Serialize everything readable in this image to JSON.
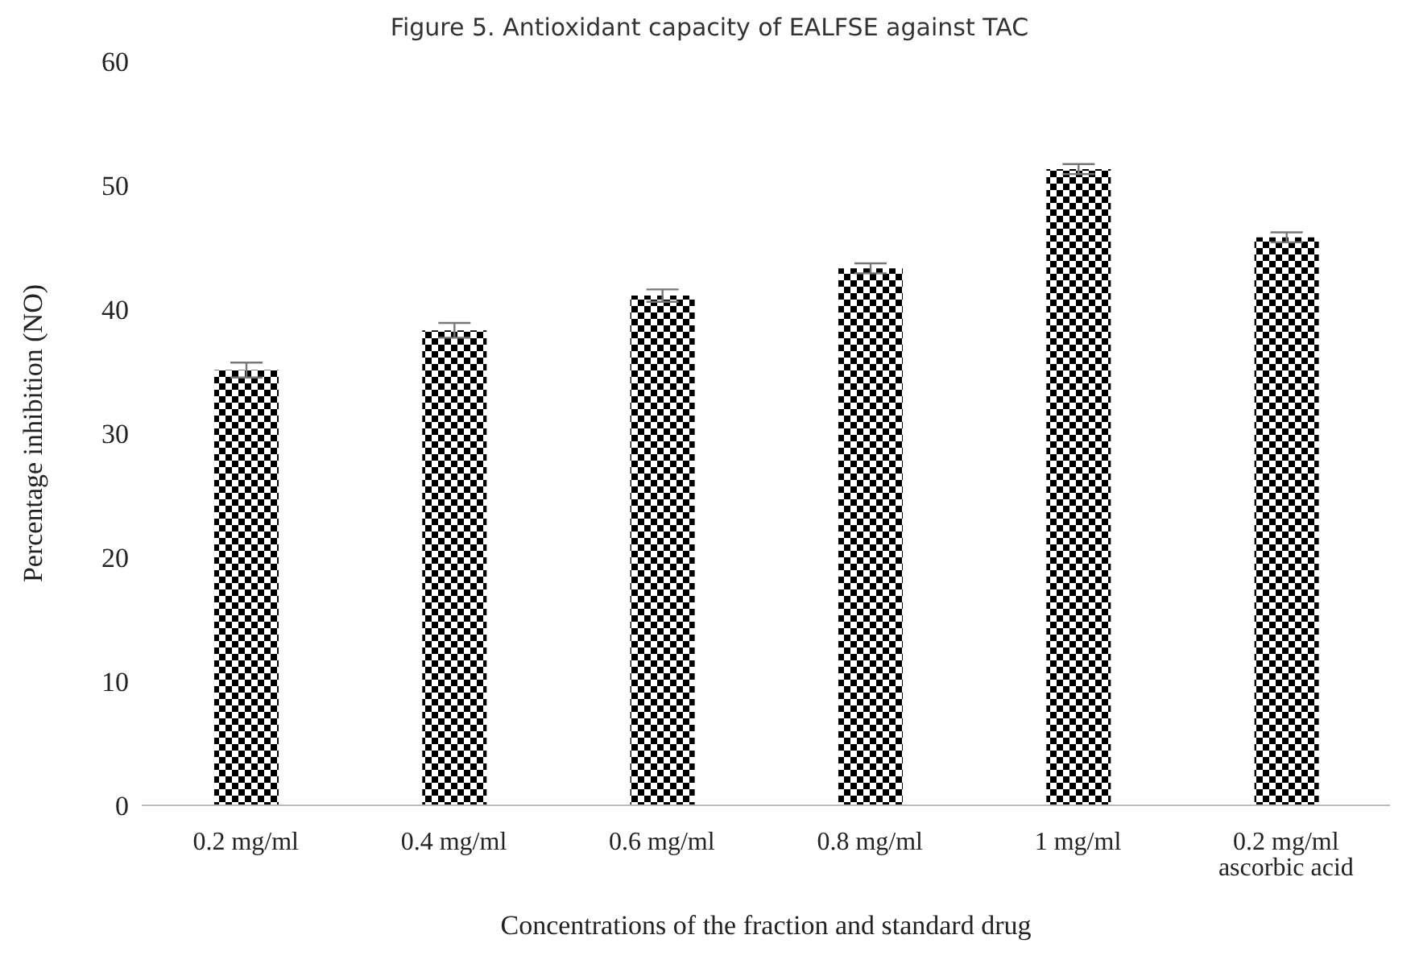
{
  "chart_data": {
    "type": "bar",
    "title": "Figure 5. Antioxidant capacity of EALFSE against TAC",
    "xlabel": "Concentrations of the fraction and standard drug",
    "ylabel": "Percentage inhibition (NO)",
    "categories": [
      "0.2 mg/ml",
      "0.4 mg/ml",
      "0.6 mg/ml",
      "0.8 mg/ml",
      "1 mg/ml",
      "0.2 mg/ml ascorbic acid"
    ],
    "values": [
      35.1,
      38.3,
      41.1,
      43.3,
      51.3,
      45.8
    ],
    "errors": [
      0.6,
      0.6,
      0.5,
      0.4,
      0.4,
      0.4
    ],
    "color": "#000000",
    "ylim": [
      0,
      60
    ],
    "yticks": [
      0,
      10,
      20,
      30,
      40,
      50,
      60
    ],
    "grid": false,
    "legend": false
  }
}
